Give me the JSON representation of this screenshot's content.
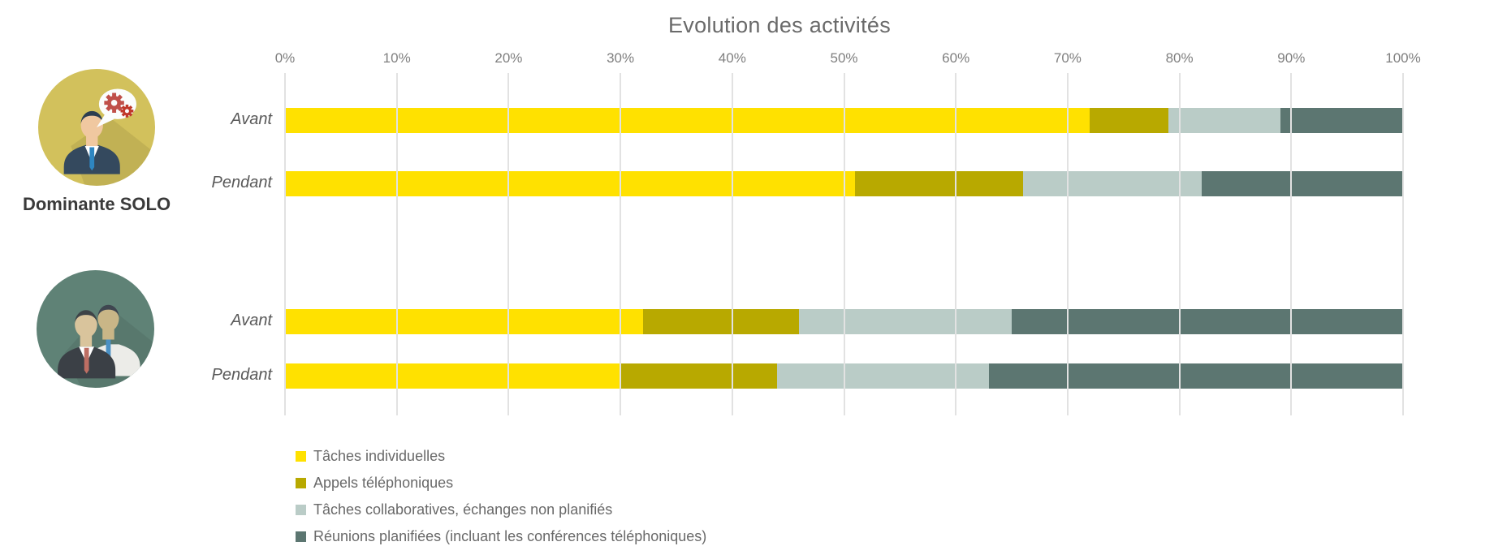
{
  "chart_data": {
    "type": "bar",
    "orientation": "horizontal-stacked",
    "title": "Evolution des activités",
    "x_ticks": [
      "0%",
      "10%",
      "20%",
      "30%",
      "40%",
      "50%",
      "60%",
      "70%",
      "80%",
      "90%",
      "100%"
    ],
    "xlim": [
      0,
      100
    ],
    "grid": true,
    "legend_position": "bottom-left",
    "series": [
      {
        "name": "Tâches individuelles",
        "color": "#FFE100"
      },
      {
        "name": "Appels téléphoniques",
        "color": "#B8A900"
      },
      {
        "name": "Tâches collaboratives, échanges non planifiés",
        "color": "#BACCC7"
      },
      {
        "name": "Réunions planifiées (incluant les conférences téléphoniques)",
        "color": "#5C7671"
      }
    ],
    "groups": [
      {
        "label": "Dominante SOLO",
        "icon": "man-with-gears-speech-bubble-icon",
        "circle_color": "#D2C15C"
      },
      {
        "label": "",
        "icon": "two-men-icon",
        "circle_color": "#5F8276"
      }
    ],
    "rows": [
      {
        "group_index": 0,
        "label": "Avant",
        "values": [
          72,
          7,
          10,
          11
        ]
      },
      {
        "group_index": 0,
        "label": "Pendant",
        "values": [
          51,
          15,
          16,
          18
        ]
      },
      {
        "group_index": 1,
        "label": "Avant",
        "values": [
          32,
          14,
          19,
          35
        ]
      },
      {
        "group_index": 1,
        "label": "Pendant",
        "values": [
          30,
          14,
          19,
          37
        ]
      }
    ]
  }
}
